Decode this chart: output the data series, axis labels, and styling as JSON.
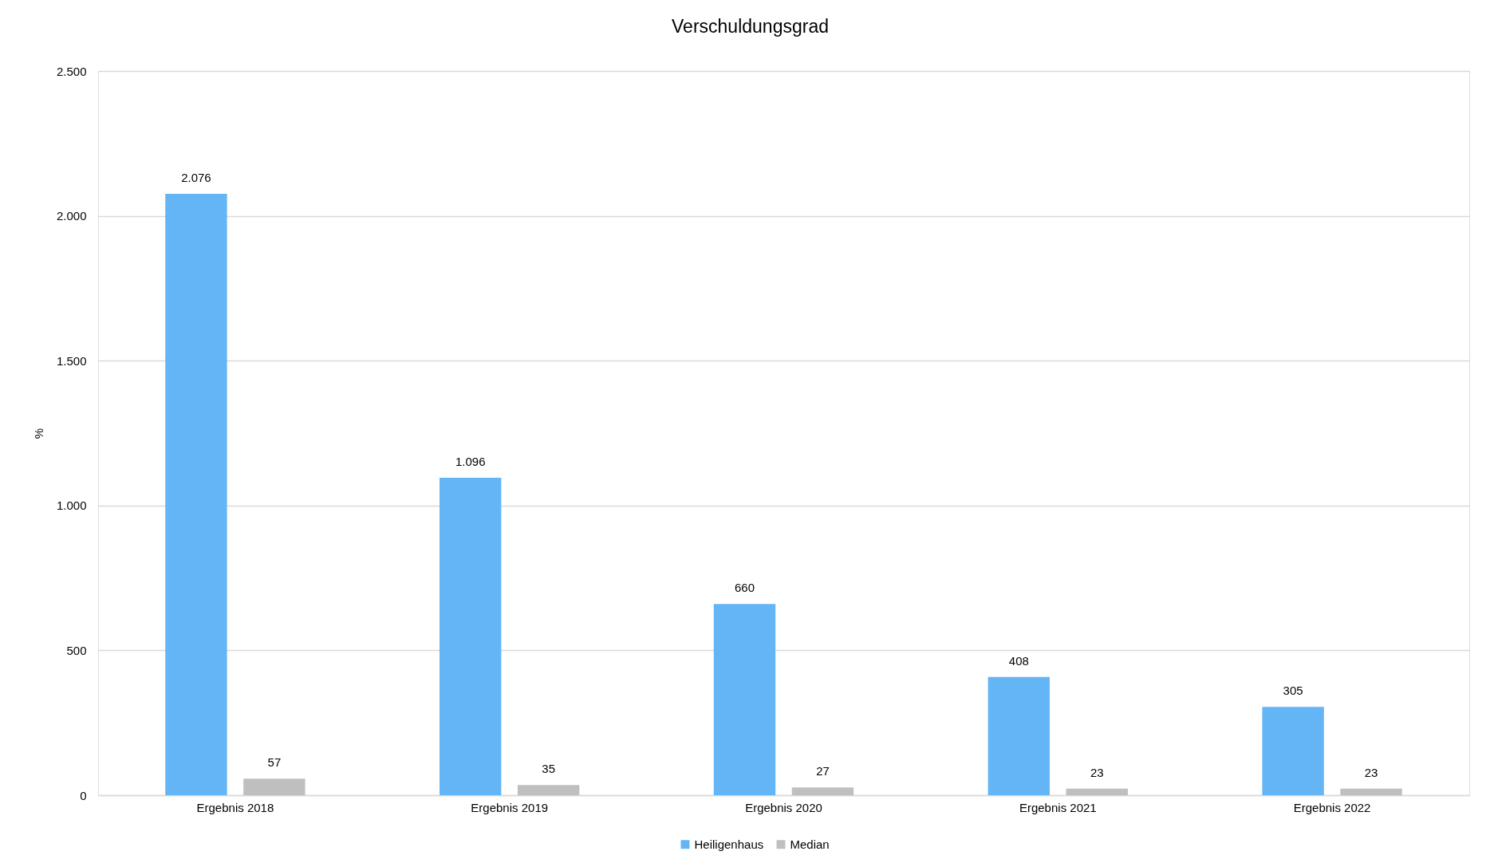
{
  "chart_data": {
    "type": "bar",
    "title": "Verschuldungsgrad",
    "ylabel": "%",
    "categories": [
      "Ergebnis 2018",
      "Ergebnis 2019",
      "Ergebnis 2020",
      "Ergebnis 2021",
      "Ergebnis 2022"
    ],
    "series": [
      {
        "name": "Heiligenhaus",
        "color": "#64b5f6",
        "values": [
          2076,
          1096,
          660,
          408,
          305
        ],
        "value_labels": [
          "2.076",
          "1.096",
          "660",
          "408",
          "305"
        ]
      },
      {
        "name": "Median",
        "color": "#bfbfbf",
        "values": [
          57,
          35,
          27,
          23,
          23
        ],
        "value_labels": [
          "57",
          "35",
          "27",
          "23",
          "23"
        ]
      }
    ],
    "ylim": [
      0,
      2500
    ],
    "yticks": [
      0,
      500,
      {
        "value": 1000,
        "label": "1.000"
      },
      {
        "value": 1500,
        "label": "1.500"
      },
      {
        "value": 2000,
        "label": "2.000"
      },
      {
        "value": 2500,
        "label": "2.500"
      }
    ],
    "grid": "y",
    "legend": "bottom"
  }
}
